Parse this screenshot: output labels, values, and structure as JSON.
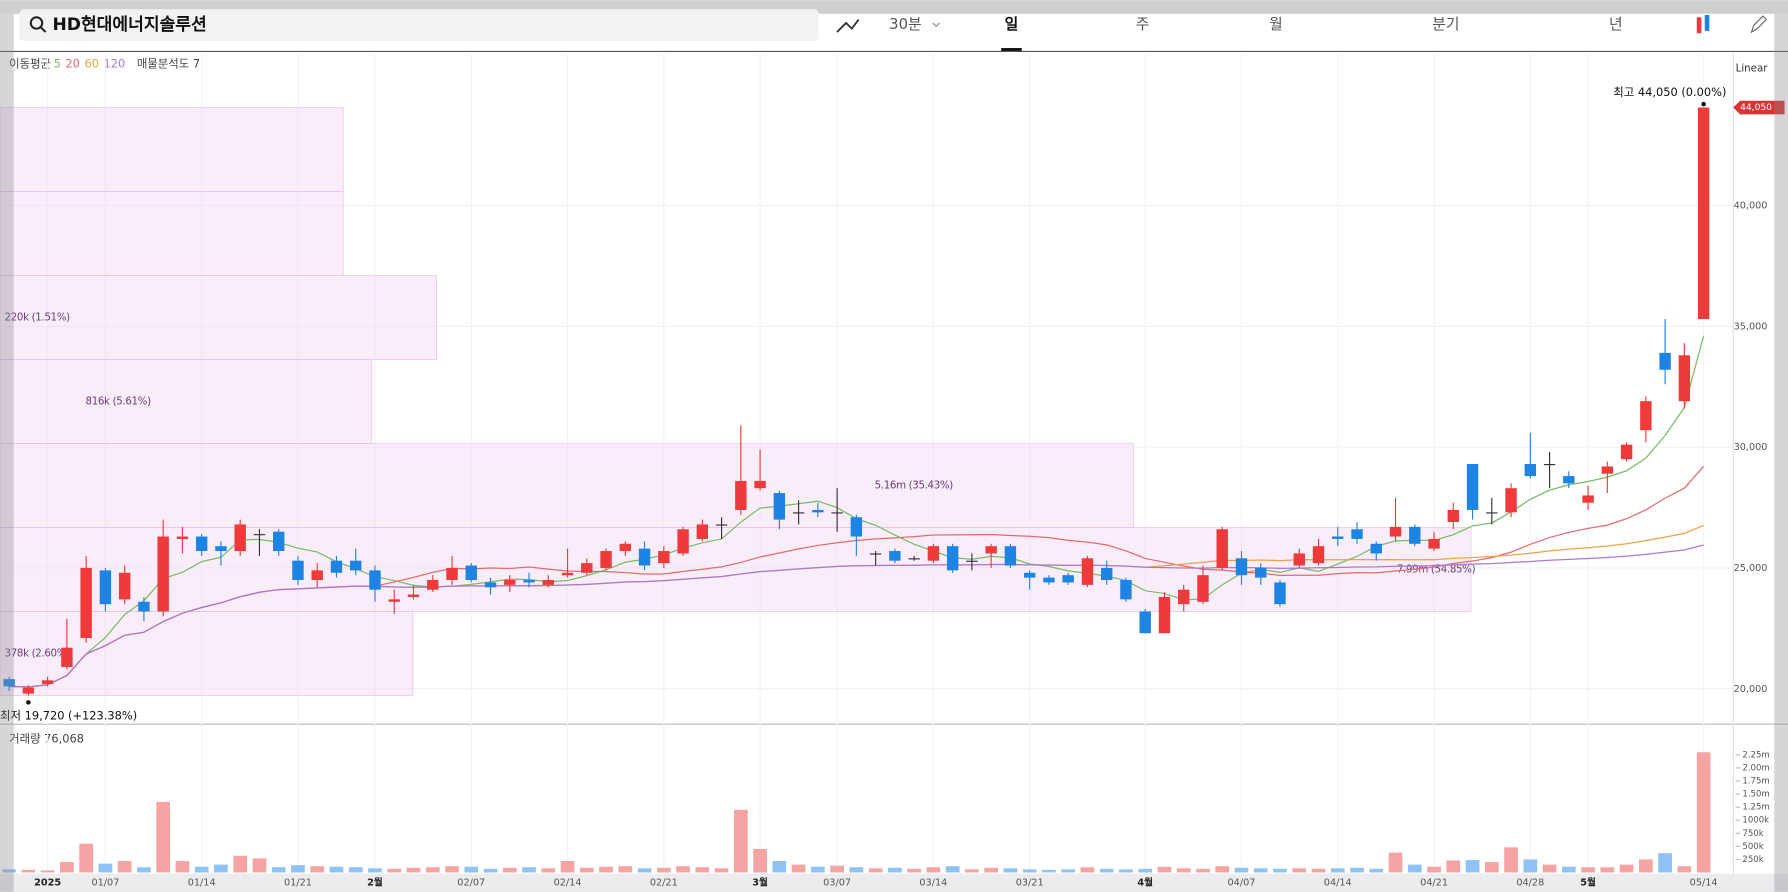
{
  "header": {
    "search": "HD현대에너지솔루션",
    "interval": "30분",
    "tabs": [
      "일",
      "주",
      "월",
      "분기",
      "년"
    ]
  },
  "legend": {
    "ma_label": "이동평균",
    "scale": "Linear",
    "volume_label": "거래량 76,068"
  },
  "chart_data": {
    "type": "candlestick",
    "categories": [
      null,
      null,
      "2025",
      null,
      null,
      "01/07",
      null,
      null,
      null,
      null,
      "01/14",
      null,
      null,
      null,
      null,
      "01/21",
      null,
      null,
      null,
      "2월",
      null,
      null,
      null,
      null,
      "02/07",
      null,
      null,
      null,
      null,
      "02/14",
      null,
      null,
      null,
      null,
      "02/21",
      null,
      null,
      null,
      null,
      "3월",
      null,
      null,
      null,
      "03/07",
      null,
      null,
      null,
      null,
      "03/14",
      null,
      null,
      null,
      null,
      "03/21",
      null,
      null,
      null,
      null,
      null,
      "4월",
      null,
      null,
      null,
      null,
      "04/07",
      null,
      null,
      null,
      null,
      "04/14",
      null,
      null,
      null,
      null,
      "04/21",
      null,
      null,
      null,
      null,
      "04/28",
      null,
      null,
      "5월",
      null,
      null,
      null,
      null,
      null,
      "05/14"
    ],
    "open": [
      20400,
      19800,
      20200,
      20900,
      22100,
      24900,
      23700,
      23600,
      23200,
      26200,
      26300,
      25900,
      25700,
      26400,
      26500,
      25300,
      24500,
      25300,
      25300,
      24900,
      23600,
      23800,
      24100,
      24500,
      25100,
      24400,
      24300,
      24500,
      24300,
      24700,
      24800,
      25000,
      25700,
      25800,
      25200,
      25600,
      26200,
      26800,
      27400,
      28300,
      28100,
      27300,
      27400,
      27300,
      27100,
      25600,
      25700,
      25400,
      25300,
      25900,
      25300,
      25600,
      25900,
      24800,
      24600,
      24700,
      24300,
      25000,
      24500,
      23200,
      22300,
      23500,
      23600,
      25000,
      25400,
      25000,
      24400,
      25100,
      25200,
      26300,
      26600,
      26000,
      26300,
      26700,
      25800,
      26900,
      29300,
      27300,
      27300,
      29300,
      29300,
      28800,
      27700,
      28900,
      29500,
      30700,
      33900,
      31900,
      35300
    ],
    "high": [
      20500,
      20150,
      20500,
      22900,
      25500,
      25000,
      25100,
      23800,
      27000,
      26700,
      26400,
      26100,
      27000,
      26600,
      26600,
      25500,
      25200,
      25500,
      25800,
      25100,
      24100,
      24300,
      24700,
      25500,
      25200,
      24600,
      24700,
      24800,
      24700,
      25800,
      25400,
      25800,
      26100,
      26100,
      25900,
      26700,
      27000,
      27100,
      30900,
      29900,
      28200,
      27800,
      27700,
      28300,
      27200,
      25700,
      25800,
      25500,
      26000,
      26000,
      25600,
      26000,
      26000,
      24900,
      24700,
      24800,
      25500,
      25300,
      24600,
      23300,
      24000,
      24300,
      25100,
      26700,
      25700,
      25200,
      24500,
      25800,
      26200,
      26700,
      26900,
      26100,
      27900,
      26800,
      26500,
      27700,
      29300,
      27900,
      28500,
      30600,
      29800,
      29000,
      28400,
      29400,
      30200,
      32100,
      35300,
      34300,
      44050
    ],
    "low": [
      19900,
      19720,
      20100,
      20800,
      21900,
      23200,
      23500,
      22800,
      23000,
      25600,
      25500,
      25100,
      25500,
      25500,
      25500,
      24300,
      24200,
      24600,
      24700,
      23600,
      23100,
      23700,
      24000,
      24300,
      24400,
      23900,
      24000,
      24200,
      24200,
      24600,
      24700,
      24900,
      25500,
      24900,
      25000,
      25500,
      26100,
      26200,
      27200,
      28200,
      26600,
      26800,
      27100,
      26500,
      25500,
      25100,
      25200,
      25300,
      25200,
      24800,
      24900,
      25000,
      25000,
      24100,
      24300,
      24300,
      24200,
      24300,
      23600,
      22300,
      22300,
      23200,
      23500,
      24900,
      24300,
      24300,
      23400,
      25000,
      25100,
      25900,
      26000,
      25300,
      26100,
      25900,
      25700,
      26600,
      27000,
      26800,
      27100,
      28700,
      28300,
      28300,
      27400,
      28100,
      29400,
      30200,
      32600,
      31600,
      35300
    ],
    "close": [
      20100,
      20050,
      20350,
      21700,
      25000,
      23500,
      24800,
      23200,
      26300,
      26300,
      25700,
      25700,
      26800,
      26400,
      25700,
      24500,
      24900,
      24800,
      24900,
      24100,
      23700,
      23900,
      24500,
      25000,
      24500,
      24200,
      24500,
      24400,
      24500,
      24800,
      25200,
      25700,
      26000,
      25100,
      25700,
      26600,
      26800,
      26800,
      28600,
      28600,
      27000,
      27300,
      27300,
      27300,
      26300,
      25600,
      25300,
      25400,
      25900,
      24900,
      25300,
      25900,
      25100,
      24600,
      24400,
      24400,
      25400,
      24500,
      23700,
      22300,
      23800,
      24100,
      24700,
      26600,
      24700,
      24600,
      23500,
      25600,
      25900,
      26200,
      26200,
      25600,
      26700,
      26000,
      26200,
      27400,
      27400,
      27300,
      28300,
      28800,
      29300,
      28500,
      28000,
      29200,
      30100,
      31900,
      33200,
      33800,
      44050
    ],
    "volume": [
      60000,
      50000,
      40000,
      200000,
      550000,
      170000,
      220000,
      100000,
      1350000,
      220000,
      110000,
      150000,
      320000,
      270000,
      100000,
      140000,
      120000,
      110000,
      100000,
      80000,
      70000,
      90000,
      100000,
      120000,
      110000,
      70000,
      90000,
      100000,
      80000,
      220000,
      90000,
      110000,
      120000,
      80000,
      90000,
      120000,
      100000,
      80000,
      1200000,
      450000,
      220000,
      150000,
      110000,
      130000,
      100000,
      80000,
      90000,
      70000,
      100000,
      120000,
      60000,
      90000,
      80000,
      60000,
      50000,
      60000,
      100000,
      70000,
      60000,
      70000,
      110000,
      80000,
      70000,
      120000,
      90000,
      80000,
      70000,
      80000,
      70000,
      80000,
      90000,
      70000,
      380000,
      150000,
      110000,
      230000,
      240000,
      200000,
      480000,
      250000,
      150000,
      110000,
      100000,
      100000,
      150000,
      250000,
      370000,
      120000,
      2300000
    ],
    "up_color": "#ee3a3a",
    "down_color": "#1e84e4",
    "volume_up_color": "#f5a3a3",
    "volume_down_color": "#8ec3f3",
    "ylim": [
      18580,
      46230
    ],
    "yticks": [
      {
        "value": 20000,
        "label": "20,000"
      },
      {
        "value": 25000,
        "label": "25,000"
      },
      {
        "value": 30000,
        "label": "30,000"
      },
      {
        "value": 35000,
        "label": "35,000"
      },
      {
        "value": 40000,
        "label": "40,000"
      }
    ],
    "volume_ylim": [
      0,
      2400000
    ],
    "volume_yticks": [
      {
        "value": 250000,
        "label": "250k"
      },
      {
        "value": 500000,
        "label": "500k"
      },
      {
        "value": 750000,
        "label": "750k"
      },
      {
        "value": 1000000,
        "label": "1000k"
      },
      {
        "value": 1250000,
        "label": "1.25m"
      },
      {
        "value": 1500000,
        "label": "1.50m"
      },
      {
        "value": 1750000,
        "label": "1.75m"
      },
      {
        "value": 2000000,
        "label": "2.00m"
      },
      {
        "value": 2250000,
        "label": "2.25m"
      }
    ],
    "moving_averages": [
      {
        "name": "5",
        "period": 5,
        "color": "#78bd66"
      },
      {
        "name": "20",
        "period": 20,
        "color": "#e8696b"
      },
      {
        "name": "60",
        "period": 60,
        "color": "#f0a144"
      },
      {
        "name": "120",
        "period": 120,
        "color": "#a77ad6"
      }
    ],
    "high_label": "최고 44,050 (0.00%)",
    "low_label": "최저 19,720 (+123.38%)",
    "last_price_label": "44,050",
    "volume_profile": {
      "title": "매물분석도 7",
      "color": "#f3d6f5",
      "bands": [
        {
          "volume": 220000,
          "label": "220k (1.51%)"
        },
        {
          "volume": 816000,
          "label": "816k (5.61%)"
        },
        {
          "volume": 5160000,
          "label": "5.16m (35.43%)"
        },
        {
          "volume": 7990000,
          "label": "7.99m (54.85%)"
        },
        {
          "volume": 378000,
          "label": "378k (2.60%)"
        }
      ]
    }
  }
}
